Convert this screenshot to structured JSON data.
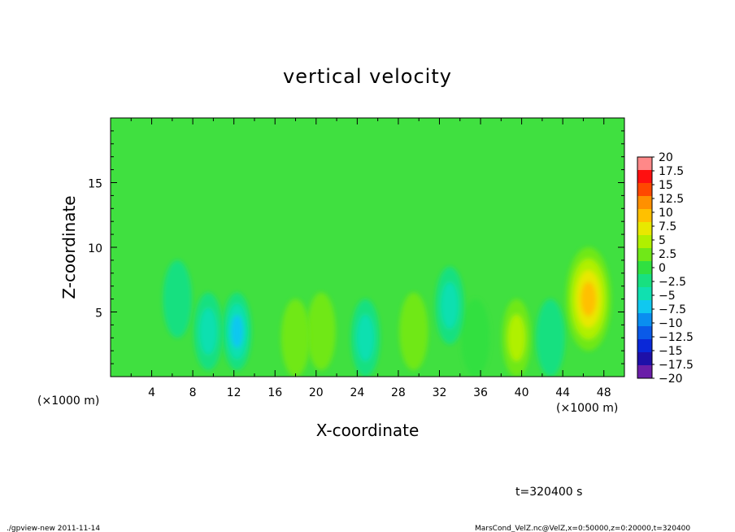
{
  "chart_data": {
    "type": "heatmap",
    "title": "vertical velocity",
    "xlabel": "X-coordinate",
    "ylabel": "Z-coordinate",
    "x_unit": "(×1000 m)",
    "x_unit_right": "(×1000 m)",
    "xlim": [
      0,
      50
    ],
    "ylim": [
      0,
      20
    ],
    "x_ticks": [
      4,
      8,
      12,
      16,
      20,
      24,
      28,
      32,
      36,
      40,
      44,
      48
    ],
    "y_ticks": [
      5,
      10,
      15
    ],
    "levels": [
      -20,
      -17.5,
      -15,
      -12.5,
      -10,
      -7.5,
      -5,
      -2.5,
      0,
      2.5,
      5,
      7.5,
      10,
      12.5,
      15,
      17.5,
      20
    ],
    "level_labels": [
      "20",
      "17.5",
      "15",
      "12.5",
      "10",
      "7.5",
      "5",
      "2.5",
      "0",
      "−2.5",
      "−5",
      "−7.5",
      "−10",
      "−12.5",
      "−15",
      "−17.5",
      "−20"
    ],
    "level_colors": [
      "#6a1ea8",
      "#1e10a8",
      "#0a28d8",
      "#0a5ae8",
      "#0a8ef0",
      "#10c8f0",
      "#10e0b0",
      "#18e080",
      "#30e040",
      "#70e818",
      "#b0f000",
      "#e8e800",
      "#ffc000",
      "#ff9000",
      "#ff4800",
      "#ff1010",
      "#ff8888"
    ],
    "features": [
      {
        "kind": "updraft",
        "x": 46.5,
        "z": 6.0,
        "peak": 11
      },
      {
        "kind": "updraft",
        "x": 39.5,
        "z": 3.0,
        "peak": 5
      },
      {
        "kind": "updraft",
        "x": 20.5,
        "z": 3.5,
        "peak": 4
      },
      {
        "kind": "updraft",
        "x": 18.0,
        "z": 3.0,
        "peak": 3
      },
      {
        "kind": "updraft",
        "x": 29.5,
        "z": 3.5,
        "peak": 3
      },
      {
        "kind": "updraft",
        "x": 35.5,
        "z": 3.0,
        "peak": 2
      },
      {
        "kind": "downdraft",
        "x": 12.3,
        "z": 3.5,
        "peak": -8
      },
      {
        "kind": "downdraft",
        "x": 24.8,
        "z": 3.0,
        "peak": -7
      },
      {
        "kind": "downdraft",
        "x": 9.5,
        "z": 3.5,
        "peak": -5
      },
      {
        "kind": "downdraft",
        "x": 33.0,
        "z": 5.5,
        "peak": -5
      },
      {
        "kind": "downdraft",
        "x": 42.8,
        "z": 3.0,
        "peak": -2
      },
      {
        "kind": "downdraft",
        "x": 6.5,
        "z": 6.0,
        "peak": -3
      }
    ]
  },
  "time_label": "t=320400 s",
  "footer_left": "./gpview-new  2011-11-14",
  "footer_right": "MarsCond_VelZ.nc@VelZ,x=0:50000,z=0:20000,t=320400"
}
